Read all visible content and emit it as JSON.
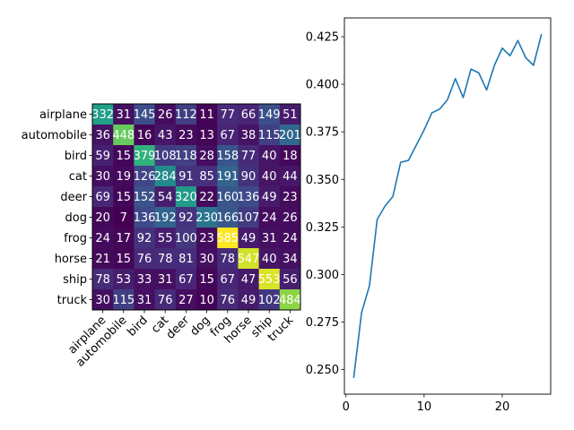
{
  "chart_data": [
    {
      "type": "heatmap",
      "title": "",
      "xlabel": "",
      "ylabel": "",
      "colormap": "viridis",
      "categories": [
        "airplane",
        "automobile",
        "bird",
        "cat",
        "deer",
        "dog",
        "frog",
        "horse",
        "ship",
        "truck"
      ],
      "matrix": [
        [
          332,
          31,
          145,
          26,
          112,
          11,
          77,
          66,
          149,
          51
        ],
        [
          36,
          448,
          16,
          43,
          23,
          13,
          67,
          38,
          115,
          201
        ],
        [
          59,
          15,
          379,
          108,
          118,
          28,
          158,
          77,
          40,
          18
        ],
        [
          30,
          19,
          126,
          284,
          91,
          85,
          191,
          90,
          40,
          44
        ],
        [
          69,
          15,
          152,
          54,
          320,
          22,
          160,
          136,
          49,
          23
        ],
        [
          20,
          7,
          136,
          192,
          92,
          230,
          166,
          107,
          24,
          26
        ],
        [
          24,
          17,
          92,
          55,
          100,
          23,
          585,
          49,
          31,
          24
        ],
        [
          21,
          15,
          76,
          78,
          81,
          30,
          78,
          547,
          40,
          34
        ],
        [
          78,
          53,
          33,
          31,
          67,
          15,
          67,
          47,
          553,
          56
        ],
        [
          30,
          115,
          31,
          76,
          27,
          10,
          76,
          49,
          102,
          484
        ]
      ],
      "vmin": 7,
      "vmax": 585,
      "x_tick_rotation_deg": 45,
      "annotation_color": "#ffffff"
    },
    {
      "type": "line",
      "title": "",
      "xlabel": "",
      "ylabel": "",
      "x": [
        1,
        2,
        3,
        4,
        5,
        6,
        7,
        8,
        9,
        10,
        11,
        12,
        13,
        14,
        15,
        16,
        17,
        18,
        19,
        20,
        21,
        22,
        23,
        24,
        25
      ],
      "series": [
        {
          "values": [
            0.246,
            0.28,
            0.294,
            0.329,
            0.336,
            0.341,
            0.359,
            0.36,
            0.368,
            0.376,
            0.385,
            0.387,
            0.392,
            0.403,
            0.393,
            0.408,
            0.406,
            0.397,
            0.41,
            0.419,
            0.415,
            0.423,
            0.414,
            0.41,
            0.426
          ],
          "color": "#1f77b4"
        }
      ],
      "xlim": [
        -0.2,
        26.2
      ],
      "ylim": [
        0.2371,
        0.4349
      ],
      "xticks": [
        "0",
        "10",
        "20"
      ],
      "xtick_values": [
        0,
        10,
        20
      ],
      "yticks": [
        "0.250",
        "0.275",
        "0.300",
        "0.325",
        "0.350",
        "0.375",
        "0.400",
        "0.425"
      ],
      "ytick_values": [
        0.25,
        0.275,
        0.3,
        0.325,
        0.35,
        0.375,
        0.4,
        0.425
      ],
      "grid": false
    }
  ]
}
